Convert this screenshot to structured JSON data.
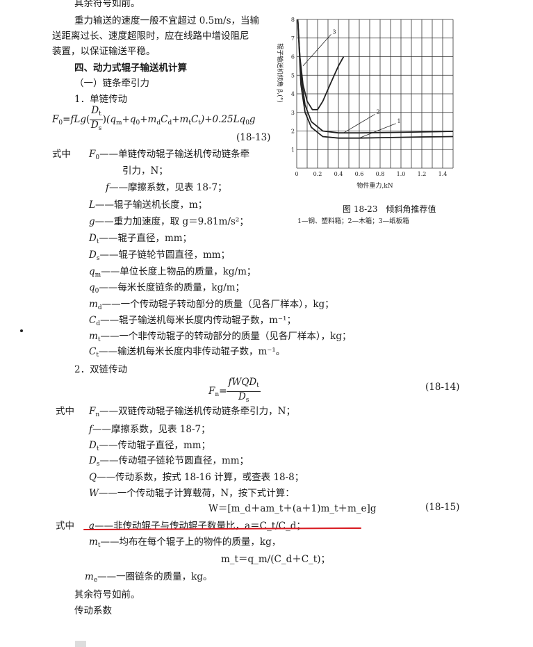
{
  "p1": "其余符号如前。",
  "p2a": "重力输送的速度一般不宜超过 0.5m/s，当输",
  "p2b": "送距离过长、速度超限时，应在线路中增设阻尼",
  "p2c": "装置，以保证输送平稳。",
  "h4": "四、动力式辊子输送机计算",
  "h_sub": "（一）链条牵引力",
  "h_single": "1．单链传动",
  "eq13": {
    "lhs": "F",
    "lhs_sub": "0",
    "a": "=fLg",
    "num": "D",
    "num_sub": "t",
    "den": "D",
    "den_sub": "s",
    "b": "(q",
    "b1": "m",
    "c": "+q",
    "c1": "0",
    "d": "+m",
    "d1": "d",
    "e": "C",
    "e1": "d",
    "f": "+m",
    "f1": "t",
    "g": "C",
    "g1": "t",
    "h": ")+0.25Lq",
    "h1": "0",
    "i": "g",
    "no": "(18-13)"
  },
  "where": "式中",
  "defs1": [
    {
      "sym": "F",
      "sub": "0",
      "text": "——单链传动辊子输送机传动链条牵"
    },
    {
      "sym": "",
      "sub": "",
      "text": "引力，N；"
    },
    {
      "sym": "f",
      "sub": "",
      "text": "——摩擦系数，见表 18-7；"
    },
    {
      "sym": "L",
      "sub": "",
      "text": "——辊子输送机长度，m；"
    },
    {
      "sym": "g",
      "sub": "",
      "text": "——重力加速度，取 g＝9.81m/s²；"
    },
    {
      "sym": "D",
      "sub": "t",
      "text": "——辊子直径，mm；"
    },
    {
      "sym": "D",
      "sub": "s",
      "text": "——辊子链轮节圆直径，mm；"
    },
    {
      "sym": "q",
      "sub": "m",
      "text": "——单位长度上物品的质量，kg/m；"
    },
    {
      "sym": "q",
      "sub": "0",
      "text": "——每米长度链条的质量，kg/m；"
    },
    {
      "sym": "m",
      "sub": "d",
      "text": "——一个传动辊子转动部分的质量（见各厂样本），kg；"
    },
    {
      "sym": "C",
      "sub": "d",
      "text": "——辊子输送机每米长度内传动辊子数，m⁻¹；"
    },
    {
      "sym": "m",
      "sub": "t",
      "text": "——一个非传动辊子的转动部分的质量（见各厂样本），kg；"
    },
    {
      "sym": "C",
      "sub": "t",
      "text": "——输送机每米长度内非传动辊子数，m⁻¹。"
    }
  ],
  "h_double": "2．双链传动",
  "eq14": {
    "lhs": "F",
    "lhs_sub": "n",
    "eq": "=",
    "num": "fWQD",
    "num_sub": "t",
    "den": "D",
    "den_sub": "s",
    "no": "(18-14)"
  },
  "defs2": [
    {
      "sym": "F",
      "sub": "n",
      "text": "——双链传动辊子输送机传动链条牵引力，N；"
    },
    {
      "sym": "f",
      "sub": "",
      "text": "——摩擦系数，见表 18-7；"
    },
    {
      "sym": "D",
      "sub": "t",
      "text": "——传动辊子直径，mm；"
    },
    {
      "sym": "D",
      "sub": "s",
      "text": "——传动辊子链轮节圆直径，mm；"
    },
    {
      "sym": "Q",
      "sub": "",
      "text": "——传动系数，按式 18-16 计算，或查表 18-8；"
    },
    {
      "sym": "W",
      "sub": "",
      "text": "——一个传动辊子计算载荷，N，按下式计算："
    }
  ],
  "eq15": {
    "text": "W＝[m_d＋am_t＋(a＋1)m_t＋m_e]g",
    "no": "(18-15)"
  },
  "defs3": [
    {
      "sym": "a",
      "sub": "",
      "text": "——非传动辊子与传动辊子数量比，a＝C_t/C_d；"
    },
    {
      "sym": "m",
      "sub": "t",
      "text": "——均布在每个辊子上的物件的质量，kg，"
    }
  ],
  "eq_mt": "m_t＝q_m/(C_d＋C_t)；",
  "def_me": {
    "sym": "m",
    "sub": "e",
    "text": "——一圈链条的质量，kg。"
  },
  "p_end1": "其余符号如前。",
  "p_end2": "传动系数",
  "figure": {
    "caption": "图 18-23　倾斜角推荐值",
    "legend": "1—钢、塑料箱；2—木箱；3—纸板箱"
  },
  "chart_data": {
    "type": "line",
    "xlabel": "物件重力,kN",
    "ylabel": "辊子输送机倾角 β,(°)",
    "xlim": [
      0,
      1.5
    ],
    "ylim": [
      0,
      8
    ],
    "xticks": [
      "0",
      "0.2",
      "0.4",
      "0.6",
      "0.8",
      "1.0",
      "1.2",
      "1.4"
    ],
    "xtick_values": [
      0,
      0.2,
      0.4,
      0.6,
      0.8,
      1.0,
      1.2,
      1.4
    ],
    "yticks": [
      "1",
      "2",
      "3",
      "4",
      "5",
      "6",
      "7",
      "8"
    ],
    "grid": true,
    "series": [
      {
        "name": "1",
        "x": [
          0.01,
          0.04,
          0.08,
          0.14,
          0.25,
          0.4,
          0.6,
          0.9,
          1.2,
          1.5
        ],
        "y": [
          8,
          4.5,
          3,
          2.2,
          1.7,
          1.62,
          1.62,
          1.65,
          1.68,
          1.7
        ]
      },
      {
        "name": "2",
        "x": [
          0.01,
          0.04,
          0.08,
          0.14,
          0.25,
          0.4,
          0.6,
          0.9,
          1.2,
          1.5
        ],
        "y": [
          8,
          5,
          3.4,
          2.5,
          2.0,
          1.9,
          1.9,
          1.92,
          1.95,
          1.98
        ]
      },
      {
        "name": "3",
        "x": [
          0.01,
          0.03,
          0.06,
          0.1,
          0.15,
          0.2,
          0.25,
          0.32,
          0.4,
          0.45
        ],
        "y": [
          8,
          6,
          4.5,
          3.6,
          3.15,
          3.15,
          3.6,
          4.5,
          5.5,
          6.0
        ]
      }
    ],
    "color": "#222222"
  }
}
